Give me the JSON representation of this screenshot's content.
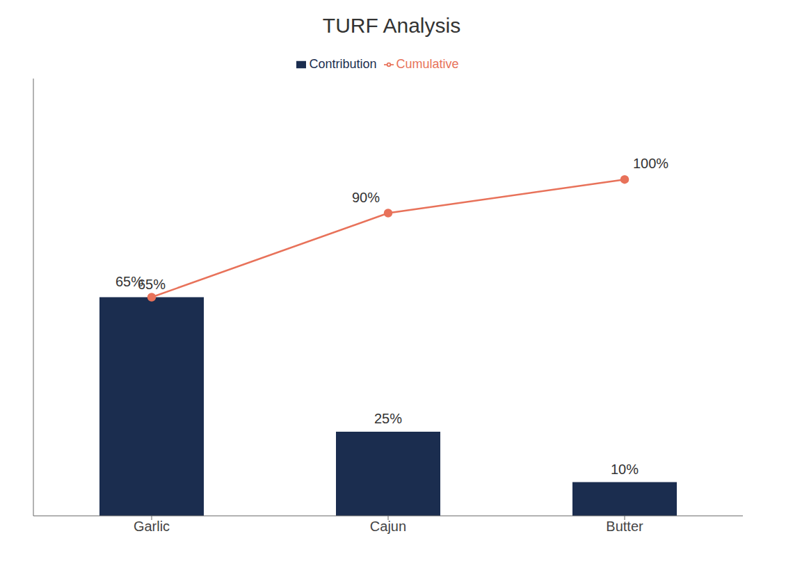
{
  "chart_data": {
    "type": "bar",
    "title": "TURF Analysis",
    "categories": [
      "Garlic",
      "Cajun",
      "Butter"
    ],
    "series": [
      {
        "name": "Contribution",
        "type": "bar",
        "color": "#1b2d4f",
        "values": [
          65,
          25,
          10
        ],
        "value_labels": [
          "65%",
          "25%",
          "10%"
        ]
      },
      {
        "name": "Cumulative",
        "type": "line",
        "color": "#e8725a",
        "marker": "circle",
        "values": [
          65,
          90,
          100
        ],
        "value_labels": [
          "65%",
          "90%",
          "100%"
        ]
      }
    ],
    "ylim": [
      0,
      130
    ],
    "yticks": [],
    "tick_labels": "x",
    "data_labels": true,
    "legend": "top",
    "grid": false
  }
}
